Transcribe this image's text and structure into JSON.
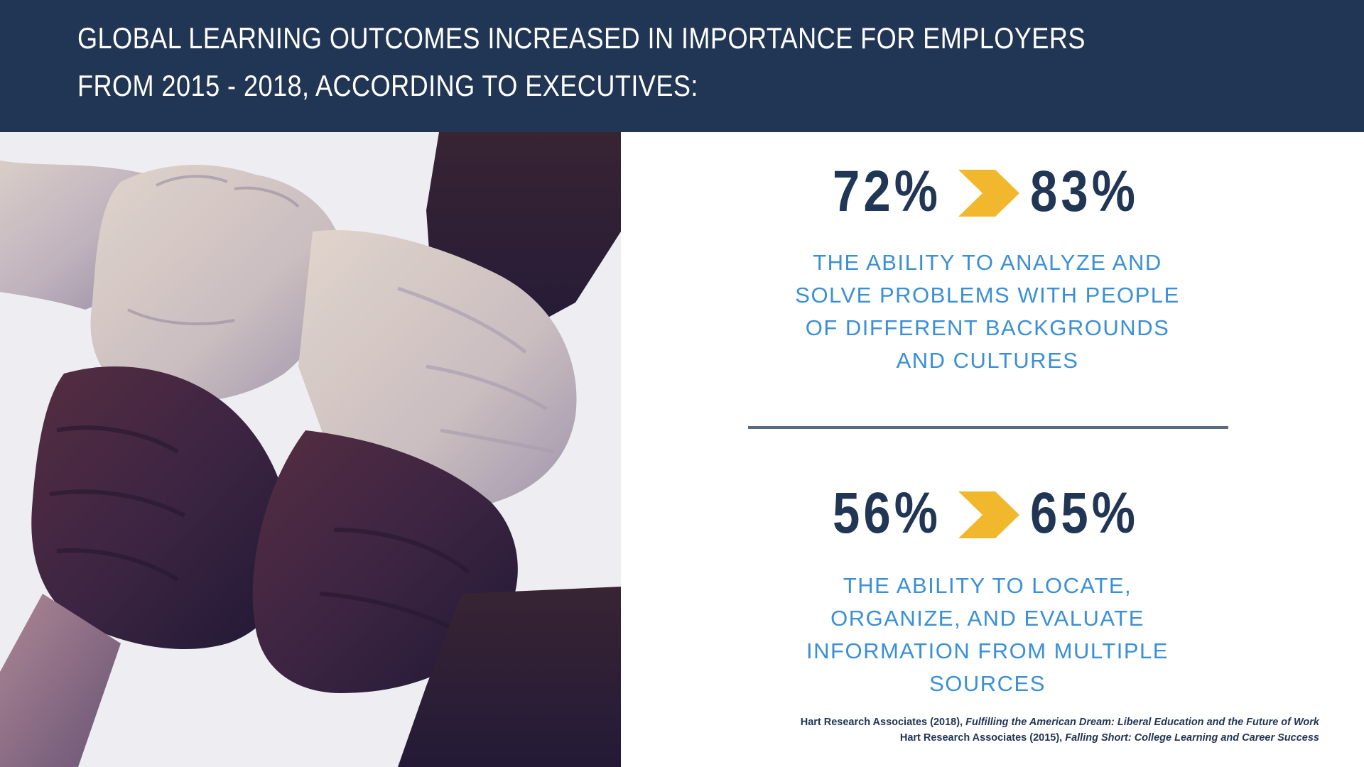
{
  "header": {
    "line1": "GLOBAL LEARNING OUTCOMES INCREASED IN IMPORTANCE FOR EMPLOYERS",
    "line2": "FROM 2015 - 2018, ACCORDING TO EXECUTIVES:",
    "background": "#213654"
  },
  "photo": {
    "subject": "four interlocked hands gripping wrists"
  },
  "stats": [
    {
      "from": "72%",
      "to": "83%",
      "description_lines": [
        "THE ABILITY TO ANALYZE AND",
        "SOLVE PROBLEMS WITH PEOPLE",
        "OF DIFFERENT BACKGROUNDS",
        "AND CULTURES"
      ]
    },
    {
      "from": "56%",
      "to": "65%",
      "description_lines": [
        "THE ABILITY TO LOCATE,",
        "ORGANIZE, AND EVALUATE",
        "INFORMATION FROM MULTIPLE",
        "SOURCES"
      ]
    }
  ],
  "arrow_icon": "chevron-right-icon",
  "citations": [
    {
      "prefix": "Hart Research Associates (2018), ",
      "title": "Fulfilling the American Dream: Liberal Education and the Future of Work"
    },
    {
      "prefix": "Hart Research Associates (2015), ",
      "title": "Falling Short: College Learning and Career Success"
    }
  ],
  "colors": {
    "navy": "#213654",
    "accent_blue": "#3a8fd6",
    "chevron_yellow": "#f1b82d",
    "divider": "#5b6b7e"
  }
}
